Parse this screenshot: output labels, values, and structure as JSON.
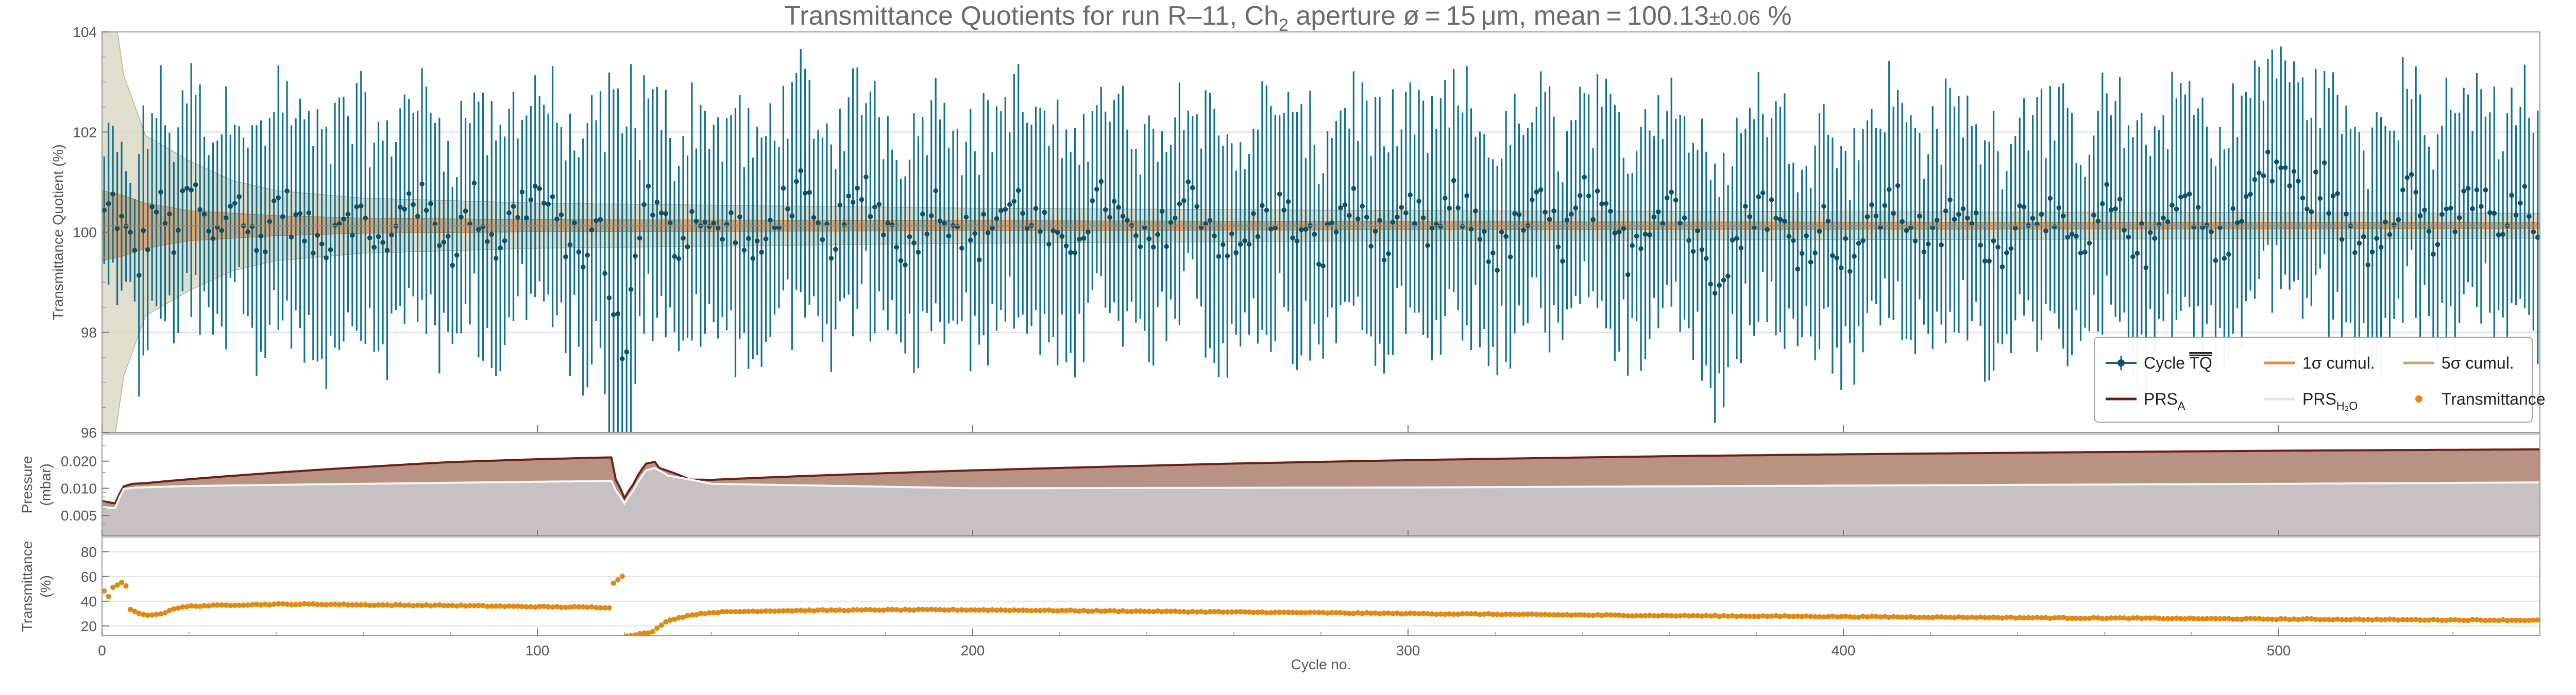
{
  "chart_data": [
    {
      "panel": "top",
      "type": "scatter",
      "title_parts": {
        "lead": "Transmittance Quotients for run R–11, Ch",
        "sub": "2",
        "mid": " aperture ø = 15 μm, mean = 100.13",
        "err": "±0.06",
        "tail": " %"
      },
      "ylabel": "Transmittance Quotient (%)",
      "xlim": [
        0,
        560
      ],
      "ylim": [
        96,
        104
      ],
      "y_ticks": [
        "96",
        "98",
        "100",
        "102",
        "104"
      ],
      "grid": true,
      "mean": 100.13,
      "mean_error": 0.06,
      "series": [
        {
          "name": "Cycle ̅T̅Q",
          "kind": "points with error bars",
          "color": "#0f6582",
          "anchors": [
            [
              0,
              100.3
            ],
            [
              2,
              100.6
            ],
            [
              5,
              99.9
            ],
            [
              8,
              99.4
            ],
            [
              12,
              100.6
            ],
            [
              16,
              99.9
            ],
            [
              20,
              100.9
            ],
            [
              25,
              99.7
            ],
            [
              30,
              100.8
            ],
            [
              35,
              99.6
            ],
            [
              40,
              100.7
            ],
            [
              45,
              100.1
            ],
            [
              50,
              99.7
            ],
            [
              55,
              100.5
            ],
            [
              60,
              100.2
            ],
            [
              65,
              99.5
            ],
            [
              70,
              100.9
            ],
            [
              75,
              100.3
            ],
            [
              80,
              99.7
            ],
            [
              85,
              100.6
            ],
            [
              90,
              99.7
            ],
            [
              95,
              100.5
            ],
            [
              100,
              100.8
            ],
            [
              105,
              100.0
            ],
            [
              110,
              99.6
            ],
            [
              114,
              100.1
            ],
            [
              116,
              98.6
            ],
            [
              118,
              98.0
            ],
            [
              120,
              97.8
            ],
            [
              122,
              99.5
            ],
            [
              124,
              100.8
            ],
            [
              128,
              100.2
            ],
            [
              132,
              99.7
            ],
            [
              136,
              100.5
            ],
            [
              140,
              99.9
            ],
            [
              145,
              100.2
            ],
            [
              150,
              99.4
            ],
            [
              155,
              100.5
            ],
            [
              160,
              100.8
            ],
            [
              165,
              99.7
            ],
            [
              170,
              100.2
            ],
            [
              175,
              100.9
            ],
            [
              180,
              100.1
            ],
            [
              185,
              99.6
            ],
            [
              190,
              100.6
            ],
            [
              195,
              100.3
            ],
            [
              200,
              99.7
            ],
            [
              205,
              100.4
            ],
            [
              210,
              100.6
            ],
            [
              215,
              100.1
            ],
            [
              220,
              99.5
            ],
            [
              225,
              100.2
            ],
            [
              230,
              100.7
            ],
            [
              235,
              100.0
            ],
            [
              240,
              99.6
            ],
            [
              245,
              100.3
            ],
            [
              250,
              100.8
            ],
            [
              255,
              100.0
            ],
            [
              260,
              99.5
            ],
            [
              265,
              100.2
            ],
            [
              270,
              100.5
            ],
            [
              275,
              99.9
            ],
            [
              280,
              99.6
            ],
            [
              285,
              100.6
            ],
            [
              290,
              100.3
            ],
            [
              295,
              99.6
            ],
            [
              300,
              100.4
            ],
            [
              305,
              99.9
            ],
            [
              310,
              100.6
            ],
            [
              315,
              100.2
            ],
            [
              320,
              99.5
            ],
            [
              325,
              100.1
            ],
            [
              330,
              100.5
            ],
            [
              335,
              99.8
            ],
            [
              340,
              100.7
            ],
            [
              345,
              100.2
            ],
            [
              350,
              99.6
            ],
            [
              355,
              100.3
            ],
            [
              360,
              100.8
            ],
            [
              365,
              99.8
            ],
            [
              370,
              99.2
            ],
            [
              375,
              99.8
            ],
            [
              380,
              100.7
            ],
            [
              385,
              100.1
            ],
            [
              390,
              99.6
            ],
            [
              395,
              100.2
            ],
            [
              400,
              99.5
            ],
            [
              405,
              100.0
            ],
            [
              410,
              100.7
            ],
            [
              415,
              100.2
            ],
            [
              420,
              99.7
            ],
            [
              425,
              100.5
            ],
            [
              430,
              100.0
            ],
            [
              435,
              99.6
            ],
            [
              440,
              100.3
            ],
            [
              445,
              100.6
            ],
            [
              450,
              99.9
            ],
            [
              455,
              99.5
            ],
            [
              460,
              100.6
            ],
            [
              465,
              100.0
            ],
            [
              470,
              99.6
            ],
            [
              475,
              100.8
            ],
            [
              480,
              100.5
            ],
            [
              485,
              99.7
            ],
            [
              490,
              100.2
            ],
            [
              495,
              101.1
            ],
            [
              500,
              101.4
            ],
            [
              505,
              100.6
            ],
            [
              510,
              101.0
            ],
            [
              515,
              100.0
            ],
            [
              520,
              99.7
            ],
            [
              525,
              100.4
            ],
            [
              530,
              101.0
            ],
            [
              535,
              99.8
            ],
            [
              540,
              100.2
            ],
            [
              545,
              100.9
            ],
            [
              550,
              99.9
            ],
            [
              555,
              100.6
            ],
            [
              559,
              100.2
            ]
          ],
          "error_bar_half_width_range": [
            1.4,
            2.7
          ]
        },
        {
          "name": "1σ cumul.",
          "kind": "band",
          "color": "#d9823a",
          "center": 100.13,
          "half_width": [
            [
              0,
              0.7
            ],
            [
              5,
              0.6
            ],
            [
              10,
              0.45
            ],
            [
              20,
              0.3
            ],
            [
              40,
              0.2
            ],
            [
              60,
              0.15
            ],
            [
              100,
              0.12
            ],
            [
              200,
              0.1
            ],
            [
              300,
              0.08
            ],
            [
              400,
              0.07
            ],
            [
              559,
              0.06
            ]
          ]
        },
        {
          "name": "5σ cumul.",
          "kind": "band",
          "color": "#c9c5a8",
          "center": 100.13,
          "half_width": [
            [
              0,
              5.6
            ],
            [
              2,
              4.8
            ],
            [
              5,
              3.0
            ],
            [
              10,
              1.8
            ],
            [
              20,
              1.3
            ],
            [
              30,
              0.9
            ],
            [
              40,
              0.7
            ],
            [
              60,
              0.55
            ],
            [
              100,
              0.45
            ],
            [
              150,
              0.4
            ],
            [
              200,
              0.35
            ],
            [
              300,
              0.3
            ],
            [
              400,
              0.28
            ],
            [
              559,
              0.25
            ]
          ]
        }
      ],
      "legend": {
        "placement": "right",
        "entries": [
          {
            "label": "Cycle ",
            "overline": "TQ",
            "color": "#0f6582",
            "marker": "point-errorbar"
          },
          {
            "label": "1σ cumul.",
            "color": "#e28a3c",
            "marker": "line"
          },
          {
            "label": "5σ cumul.",
            "color": "#c4a577",
            "marker": "line"
          },
          {
            "label": "PRS",
            "sub": "A",
            "color": "#6b1f12",
            "marker": "line"
          },
          {
            "label": "PRS",
            "sub": "H₂O",
            "color": "#dfe8ee",
            "marker": "line"
          },
          {
            "label": "Transmittance",
            "color": "#e08a14",
            "marker": "dot"
          }
        ]
      }
    },
    {
      "panel": "middle",
      "type": "area",
      "ylabel_lines": [
        "Pressure",
        "(mbar)"
      ],
      "xlim": [
        0,
        560
      ],
      "ylim": [
        0.003,
        0.04
      ],
      "scale": "log",
      "y_ticks": [
        0.005,
        0.01,
        0.02
      ],
      "y_tick_labels": [
        "0.005",
        "0.010",
        "0.020"
      ],
      "series": [
        {
          "name": "PRS_A",
          "color": "#6b1f12",
          "fill": "#b89282",
          "points": [
            [
              0,
              0.0072
            ],
            [
              3,
              0.0068
            ],
            [
              5,
              0.0105
            ],
            [
              7,
              0.0112
            ],
            [
              10,
              0.0114
            ],
            [
              20,
              0.0126
            ],
            [
              40,
              0.0149
            ],
            [
              60,
              0.0172
            ],
            [
              80,
              0.0195
            ],
            [
              100,
              0.021
            ],
            [
              113,
              0.0218
            ],
            [
              117,
              0.022
            ],
            [
              118,
              0.0125
            ],
            [
              120,
              0.0078
            ],
            [
              122,
              0.011
            ],
            [
              125,
              0.0188
            ],
            [
              127,
              0.0196
            ],
            [
              128,
              0.0168
            ],
            [
              135,
              0.0125
            ],
            [
              140,
              0.0124
            ],
            [
              160,
              0.0136
            ],
            [
              200,
              0.0158
            ],
            [
              260,
              0.0188
            ],
            [
              300,
              0.0205
            ],
            [
              360,
              0.0227
            ],
            [
              400,
              0.0238
            ],
            [
              450,
              0.025
            ],
            [
              500,
              0.0261
            ],
            [
              559,
              0.027
            ]
          ]
        },
        {
          "name": "PRS_H2O",
          "color": "#dfe8ee",
          "fill": "#c8c1c3",
          "points": [
            [
              0,
              0.0062
            ],
            [
              3,
              0.006
            ],
            [
              5,
              0.0098
            ],
            [
              8,
              0.0102
            ],
            [
              20,
              0.0106
            ],
            [
              60,
              0.0112
            ],
            [
              100,
              0.0118
            ],
            [
              113,
              0.012
            ],
            [
              117,
              0.0121
            ],
            [
              118,
              0.0095
            ],
            [
              120,
              0.0068
            ],
            [
              122,
              0.0094
            ],
            [
              125,
              0.0158
            ],
            [
              127,
              0.0168
            ],
            [
              130,
              0.0138
            ],
            [
              140,
              0.0112
            ],
            [
              200,
              0.01
            ],
            [
              300,
              0.0102
            ],
            [
              400,
              0.0107
            ],
            [
              500,
              0.0112
            ],
            [
              559,
              0.0116
            ]
          ]
        }
      ]
    },
    {
      "panel": "bottom",
      "type": "scatter",
      "ylabel_lines": [
        "Transmittance",
        "(%)"
      ],
      "xlabel": "Cycle no.",
      "xlim": [
        0,
        560
      ],
      "ylim": [
        12,
        92
      ],
      "y_ticks": [
        "20",
        "40",
        "60",
        "80"
      ],
      "x_ticks": [
        "0",
        "100",
        "200",
        "300",
        "400",
        "500"
      ],
      "series": [
        {
          "name": "Transmittance",
          "color": "#e08a14",
          "points": [
            [
              0,
              47
            ],
            [
              1,
              45
            ],
            [
              2,
              51
            ],
            [
              3,
              52
            ],
            [
              4,
              54
            ],
            [
              5,
              53
            ],
            [
              6,
              33
            ],
            [
              8,
              30
            ],
            [
              10,
              29
            ],
            [
              12,
              29
            ],
            [
              14,
              31
            ],
            [
              16,
              34
            ],
            [
              20,
              36
            ],
            [
              30,
              37
            ],
            [
              40,
              37.5
            ],
            [
              50,
              37.5
            ],
            [
              60,
              37
            ],
            [
              80,
              36.5
            ],
            [
              100,
              35.5
            ],
            [
              116,
              35
            ],
            [
              117,
              54
            ],
            [
              118,
              58
            ],
            [
              119,
              60
            ],
            [
              120,
              12
            ],
            [
              122,
              13
            ],
            [
              124,
              14
            ],
            [
              126,
              15
            ],
            [
              128,
              21
            ],
            [
              130,
              25
            ],
            [
              135,
              29
            ],
            [
              140,
              31
            ],
            [
              150,
              32
            ],
            [
              160,
              32.5
            ],
            [
              180,
              33
            ],
            [
              200,
              33
            ],
            [
              250,
              31.5
            ],
            [
              300,
              30
            ],
            [
              350,
              28.5
            ],
            [
              400,
              27.5
            ],
            [
              450,
              26.5
            ],
            [
              500,
              25.5
            ],
            [
              559,
              24.5
            ]
          ]
        }
      ]
    }
  ]
}
